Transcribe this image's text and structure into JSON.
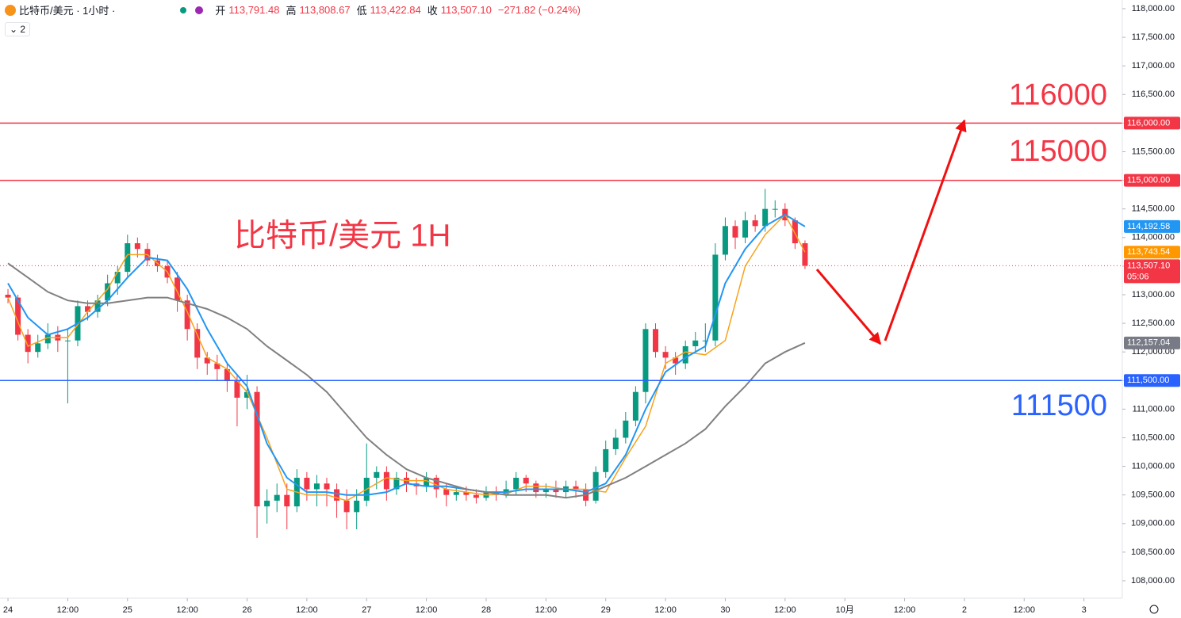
{
  "header": {
    "symbol": "比特币/美元 · 1小时 ·",
    "indicator_count": "2",
    "ohlc": [
      {
        "key": "开",
        "value": "113,791.48"
      },
      {
        "key": "高",
        "value": "113,808.67"
      },
      {
        "key": "低",
        "value": "113,422.84"
      },
      {
        "key": "收",
        "value": "113,507.10"
      }
    ],
    "change": "−271.82 (−0.24%)"
  },
  "chart_data": {
    "type": "candlestick",
    "title": "比特币/美元 1H",
    "up_color": "#089981",
    "down_color": "#f23645",
    "x": [
      0,
      2,
      4,
      6,
      8,
      10,
      12,
      14,
      16,
      18,
      20,
      22,
      24,
      26,
      28,
      30,
      32,
      34,
      36,
      38,
      40,
      42,
      44,
      46,
      48,
      50,
      52,
      54,
      56,
      58,
      60,
      62,
      64,
      66,
      68,
      70,
      72,
      74,
      76,
      78,
      80,
      82,
      84,
      86,
      88,
      90,
      92,
      94,
      96,
      98,
      100,
      102,
      104,
      106,
      108,
      110,
      112,
      114,
      116,
      118,
      120,
      122,
      124,
      126,
      128,
      130,
      132,
      134,
      136,
      138,
      140,
      142,
      144,
      146,
      148,
      150,
      152,
      154,
      156,
      158,
      160
    ],
    "open": [
      113000,
      112950,
      112300,
      112000,
      112150,
      112300,
      112200,
      112200,
      112800,
      112700,
      112900,
      113200,
      113400,
      113900,
      113800,
      113600,
      113500,
      113300,
      112900,
      112400,
      111900,
      111800,
      111700,
      111500,
      111200,
      111300,
      109300,
      109400,
      109500,
      109300,
      109800,
      109600,
      109700,
      109600,
      109400,
      109200,
      109400,
      109800,
      109900,
      109600,
      109800,
      109700,
      109650,
      109800,
      109600,
      109500,
      109550,
      109500,
      109450,
      109550,
      109500,
      109600,
      109800,
      109700,
      109550,
      109600,
      109550,
      109650,
      109600,
      109400,
      109900,
      110300,
      110500,
      110800,
      111300,
      112400,
      112000,
      111900,
      111800,
      112100,
      112200,
      112200,
      113700,
      114200,
      114000,
      114300,
      114200,
      114500,
      114500,
      114300,
      113900
    ],
    "high": [
      113100,
      113000,
      112400,
      112300,
      112500,
      112450,
      112400,
      112900,
      112900,
      113000,
      113350,
      113500,
      114050,
      114000,
      113900,
      113700,
      113600,
      113400,
      113000,
      112500,
      112000,
      111950,
      111800,
      111600,
      111600,
      111400,
      109600,
      109700,
      109700,
      109950,
      109900,
      109850,
      109800,
      109700,
      109600,
      109600,
      110400,
      110000,
      110000,
      109900,
      109900,
      109800,
      109900,
      109850,
      109700,
      109650,
      109650,
      109600,
      109650,
      109650,
      109750,
      109900,
      109850,
      109750,
      109700,
      109750,
      109750,
      109750,
      109700,
      110000,
      110450,
      110650,
      110950,
      111400,
      112500,
      112500,
      112100,
      112000,
      112200,
      112350,
      112500,
      113900,
      114350,
      114300,
      114450,
      114400,
      114850,
      114650,
      114600,
      114350,
      113950
    ],
    "low": [
      112850,
      112200,
      111800,
      111900,
      112050,
      112000,
      111100,
      112100,
      112550,
      112600,
      112800,
      113000,
      113300,
      113650,
      113500,
      113400,
      113200,
      112700,
      112200,
      111700,
      111600,
      111500,
      111300,
      110700,
      111000,
      108750,
      109000,
      109200,
      108900,
      109200,
      109400,
      109300,
      109300,
      109100,
      108900,
      108900,
      109300,
      109600,
      109400,
      109500,
      109550,
      109500,
      109550,
      109450,
      109300,
      109400,
      109400,
      109350,
      109400,
      109400,
      109450,
      109500,
      109550,
      109450,
      109450,
      109450,
      109450,
      109450,
      109300,
      109350,
      109800,
      110200,
      110400,
      110700,
      111100,
      111900,
      111700,
      111600,
      111700,
      112000,
      112000,
      112100,
      113600,
      113800,
      113900,
      114100,
      114100,
      114350,
      114200,
      113800,
      113450
    ],
    "close": [
      112950,
      112300,
      112000,
      112150,
      112300,
      112200,
      112200,
      112800,
      112700,
      112900,
      113200,
      113400,
      113900,
      113800,
      113600,
      113500,
      113300,
      112900,
      112400,
      111900,
      111800,
      111700,
      111500,
      111200,
      111300,
      109300,
      109400,
      109500,
      109300,
      109800,
      109600,
      109700,
      109600,
      109400,
      109200,
      109400,
      109800,
      109900,
      109600,
      109800,
      109700,
      109650,
      109800,
      109600,
      109500,
      109550,
      109500,
      109450,
      109550,
      109500,
      109600,
      109800,
      109700,
      109550,
      109600,
      109550,
      109650,
      109600,
      109400,
      109900,
      110300,
      110500,
      110800,
      111300,
      112400,
      112000,
      111900,
      111800,
      112100,
      112200,
      112200,
      113700,
      114200,
      114000,
      114300,
      114200,
      114500,
      114500,
      114300,
      113900,
      113507.1
    ],
    "lines": [
      {
        "color": "#f7a21b",
        "x": [
          0,
          4,
          8,
          12,
          16,
          20,
          24,
          28,
          32,
          36,
          40,
          44,
          48,
          52,
          56,
          60,
          64,
          68,
          72,
          76,
          80,
          84,
          88,
          92,
          96,
          100,
          104,
          108,
          112,
          116,
          120,
          124,
          128,
          132,
          136,
          140,
          144,
          148,
          152,
          156,
          160
        ],
        "values": [
          112950,
          112100,
          112250,
          112250,
          112700,
          113100,
          113700,
          113700,
          113400,
          112700,
          111900,
          111700,
          111300,
          110500,
          109600,
          109500,
          109500,
          109400,
          109600,
          109800,
          109750,
          109750,
          109600,
          109550,
          109500,
          109520,
          109650,
          109650,
          109600,
          109600,
          109550,
          110150,
          110700,
          111800,
          112000,
          111950,
          112200,
          113500,
          114050,
          114400,
          113743.54
        ]
      },
      {
        "color": "#2196f3",
        "x": [
          0,
          4,
          8,
          12,
          16,
          20,
          24,
          28,
          32,
          36,
          40,
          44,
          48,
          52,
          56,
          60,
          64,
          68,
          72,
          76,
          80,
          84,
          88,
          92,
          96,
          100,
          104,
          108,
          112,
          116,
          120,
          124,
          128,
          132,
          136,
          140,
          144,
          148,
          152,
          156,
          160
        ],
        "values": [
          113200,
          112600,
          112300,
          112400,
          112600,
          112900,
          113300,
          113650,
          113600,
          113100,
          112400,
          111800,
          111400,
          110400,
          109800,
          109550,
          109550,
          109500,
          109500,
          109550,
          109700,
          109650,
          109650,
          109600,
          109550,
          109550,
          109600,
          109600,
          109600,
          109550,
          109700,
          110200,
          111000,
          111650,
          111900,
          112100,
          113200,
          113800,
          114200,
          114400,
          114192.58
        ]
      },
      {
        "color": "#808080",
        "x": [
          0,
          4,
          8,
          12,
          16,
          20,
          24,
          28,
          32,
          36,
          40,
          44,
          48,
          52,
          56,
          60,
          64,
          68,
          72,
          76,
          80,
          84,
          88,
          92,
          96,
          100,
          104,
          108,
          112,
          116,
          120,
          124,
          128,
          132,
          136,
          140,
          144,
          148,
          152,
          156,
          160
        ],
        "values": [
          113550,
          113300,
          113050,
          112900,
          112850,
          112850,
          112900,
          112950,
          112950,
          112850,
          112750,
          112600,
          112400,
          112100,
          111850,
          111600,
          111300,
          110900,
          110500,
          110200,
          109950,
          109800,
          109700,
          109600,
          109550,
          109500,
          109500,
          109500,
          109450,
          109500,
          109650,
          109800,
          110000,
          110200,
          110400,
          110650,
          111050,
          111400,
          111800,
          112000,
          112157.04
        ]
      }
    ],
    "levels": [
      {
        "value": 116000,
        "color": "#f23645",
        "label": "116,000.00",
        "annotation": "116000"
      },
      {
        "value": 115000,
        "color": "#f23645",
        "label": "115,000.00",
        "annotation": "115000"
      },
      {
        "value": 111500,
        "color": "#2962ff",
        "label": "111,500.00",
        "annotation": "111500"
      }
    ],
    "price_tags": [
      {
        "value": 114192.58,
        "color": "#2196f3",
        "label": "114,192.58"
      },
      {
        "value": 113743.54,
        "color": "#ff9800",
        "label": "113,743.54"
      },
      {
        "value": 112157.04,
        "color": "#787b86",
        "label": "112,157.04"
      }
    ],
    "current_price": {
      "value": 113507.1,
      "color": "#f23645",
      "label": "113,507.10",
      "countdown": "05:06"
    },
    "ylim": [
      107695,
      118152
    ],
    "yticks": [
      {
        "value": 108000,
        "label": "108,000.00"
      },
      {
        "value": 108500,
        "label": "108,500.00"
      },
      {
        "value": 109000,
        "label": "109,000.00"
      },
      {
        "value": 109500,
        "label": "109,500.00"
      },
      {
        "value": 110000,
        "label": "110,000.00"
      },
      {
        "value": 110500,
        "label": "110,500.00"
      },
      {
        "value": 111000,
        "label": "111,000.00"
      },
      {
        "value": 111500,
        "label": "111,500.00"
      },
      {
        "value": 112000,
        "label": "112,000.00"
      },
      {
        "value": 112500,
        "label": "112,500.00"
      },
      {
        "value": 113000,
        "label": "113,000.00"
      },
      {
        "value": 113500,
        "label": "113,500.00"
      },
      {
        "value": 114000,
        "label": "114,000.00"
      },
      {
        "value": 114500,
        "label": "114,500.00"
      },
      {
        "value": 115000,
        "label": "115,000.00"
      },
      {
        "value": 115500,
        "label": "115,500.00"
      },
      {
        "value": 116000,
        "label": "116,000.00"
      },
      {
        "value": 116500,
        "label": "116,500.00"
      },
      {
        "value": 117000,
        "label": "117,000.00"
      },
      {
        "value": 117500,
        "label": "117,500.00"
      },
      {
        "value": 118000,
        "label": "118,000.00"
      }
    ],
    "xlim": [
      -1.6,
      223.7
    ],
    "xticks": [
      {
        "value": 0,
        "label": "24"
      },
      {
        "value": 12,
        "label": "12:00"
      },
      {
        "value": 24,
        "label": "25"
      },
      {
        "value": 36,
        "label": "12:00"
      },
      {
        "value": 48,
        "label": "26"
      },
      {
        "value": 60,
        "label": "12:00"
      },
      {
        "value": 72,
        "label": "27"
      },
      {
        "value": 84,
        "label": "12:00"
      },
      {
        "value": 96,
        "label": "28"
      },
      {
        "value": 108,
        "label": "12:00"
      },
      {
        "value": 120,
        "label": "29"
      },
      {
        "value": 132,
        "label": "12:00"
      },
      {
        "value": 144,
        "label": "30"
      },
      {
        "value": 156,
        "label": "12:00"
      },
      {
        "value": 168,
        "label": "10月"
      },
      {
        "value": 180,
        "label": "12:00"
      },
      {
        "value": 192,
        "label": "2"
      },
      {
        "value": 204,
        "label": "12:00"
      },
      {
        "value": 216,
        "label": "3"
      }
    ]
  }
}
